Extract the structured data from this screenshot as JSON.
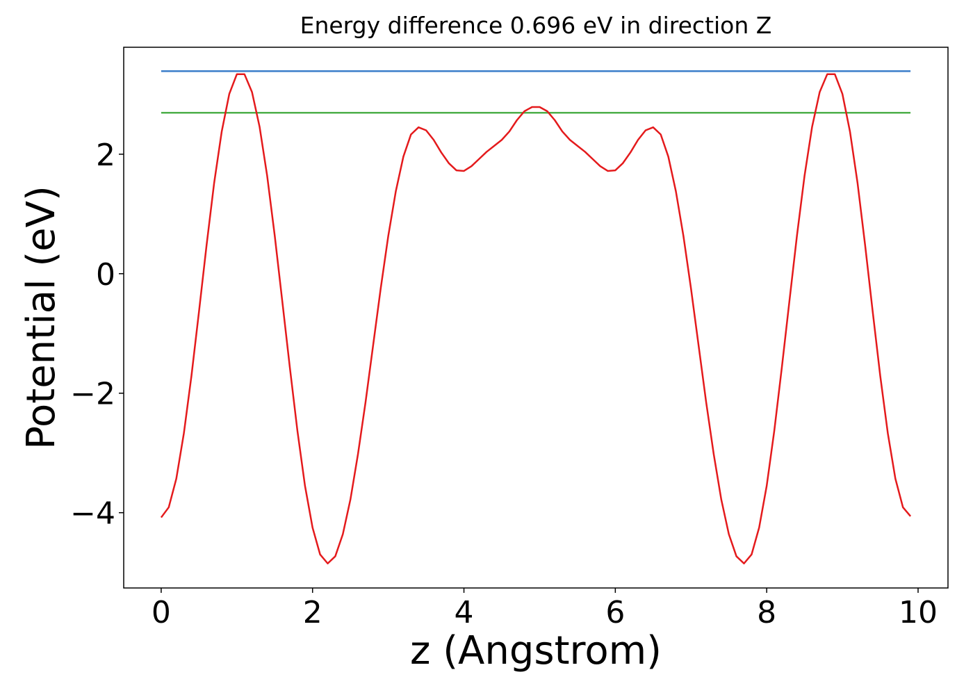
{
  "chart_data": {
    "type": "line",
    "title": "Energy difference 0.696 eV in direction Z",
    "x_label": "z (Angstrom)",
    "y_label": "Potential (eV)",
    "xlim": [
      -0.495,
      10.395
    ],
    "ylim": [
      -5.26,
      3.79
    ],
    "xticks": [
      0,
      2,
      4,
      6,
      8,
      10
    ],
    "yticks": [
      {
        "value": -4,
        "label": "−4"
      },
      {
        "value": -2,
        "label": "−2"
      },
      0,
      2
    ],
    "grid": false,
    "series": [
      {
        "color": "#3a7dc9",
        "x": [
          0,
          9.9
        ],
        "values": [
          3.39,
          3.39
        ]
      },
      {
        "color": "#4daf4a",
        "x": [
          0,
          9.9
        ],
        "values": [
          2.694,
          2.694
        ]
      },
      {
        "color": "#e41a1c",
        "x": [
          0,
          0.1,
          0.2,
          0.3,
          0.4,
          0.5,
          0.6,
          0.7,
          0.8,
          0.9,
          1.0,
          1.1,
          1.2,
          1.3,
          1.4,
          1.5,
          1.6,
          1.7,
          1.8,
          1.9,
          2.0,
          2.1,
          2.2,
          2.3,
          2.4,
          2.5,
          2.6,
          2.7,
          2.8,
          2.9,
          3.0,
          3.1,
          3.2,
          3.3,
          3.4,
          3.5,
          3.6,
          3.7,
          3.8,
          3.9,
          4.0,
          4.1,
          4.2,
          4.3,
          4.4,
          4.5,
          4.6,
          4.7,
          4.8,
          4.9,
          5.0,
          5.1,
          5.2,
          5.3,
          5.4,
          5.5,
          5.6,
          5.7,
          5.8,
          5.9,
          6.0,
          6.1,
          6.2,
          6.3,
          6.4,
          6.5,
          6.6,
          6.7,
          6.8,
          6.9,
          7.0,
          7.1,
          7.2,
          7.3,
          7.4,
          7.5,
          7.6,
          7.7,
          7.8,
          7.9,
          8.0,
          8.1,
          8.2,
          8.3,
          8.4,
          8.5,
          8.6,
          8.7,
          8.8,
          8.9,
          9.0,
          9.1,
          9.2,
          9.3,
          9.4,
          9.5,
          9.6,
          9.7,
          9.8,
          9.9
        ],
        "values": [
          -4.08,
          -3.91,
          -3.43,
          -2.67,
          -1.71,
          -0.63,
          0.48,
          1.52,
          2.38,
          3.01,
          3.34,
          3.34,
          3.04,
          2.46,
          1.64,
          0.64,
          -0.46,
          -1.57,
          -2.63,
          -3.55,
          -4.25,
          -4.7,
          -4.85,
          -4.73,
          -4.36,
          -3.78,
          -3.02,
          -2.15,
          -1.2,
          -0.25,
          0.63,
          1.38,
          1.96,
          2.33,
          2.45,
          2.4,
          2.24,
          2.03,
          1.85,
          1.73,
          1.72,
          1.8,
          1.92,
          2.04,
          2.14,
          2.24,
          2.38,
          2.57,
          2.72,
          2.79,
          2.79,
          2.72,
          2.57,
          2.38,
          2.24,
          2.14,
          2.04,
          1.92,
          1.8,
          1.72,
          1.73,
          1.85,
          2.03,
          2.24,
          2.4,
          2.45,
          2.33,
          1.96,
          1.38,
          0.63,
          -0.25,
          -1.2,
          -2.15,
          -3.02,
          -3.78,
          -4.36,
          -4.73,
          -4.85,
          -4.7,
          -4.25,
          -3.55,
          -2.63,
          -1.57,
          -0.46,
          0.64,
          1.64,
          2.46,
          3.04,
          3.34,
          3.34,
          3.01,
          2.38,
          1.52,
          0.48,
          -0.63,
          -1.71,
          -2.67,
          -3.43,
          -3.91,
          -4.06
        ]
      }
    ]
  }
}
